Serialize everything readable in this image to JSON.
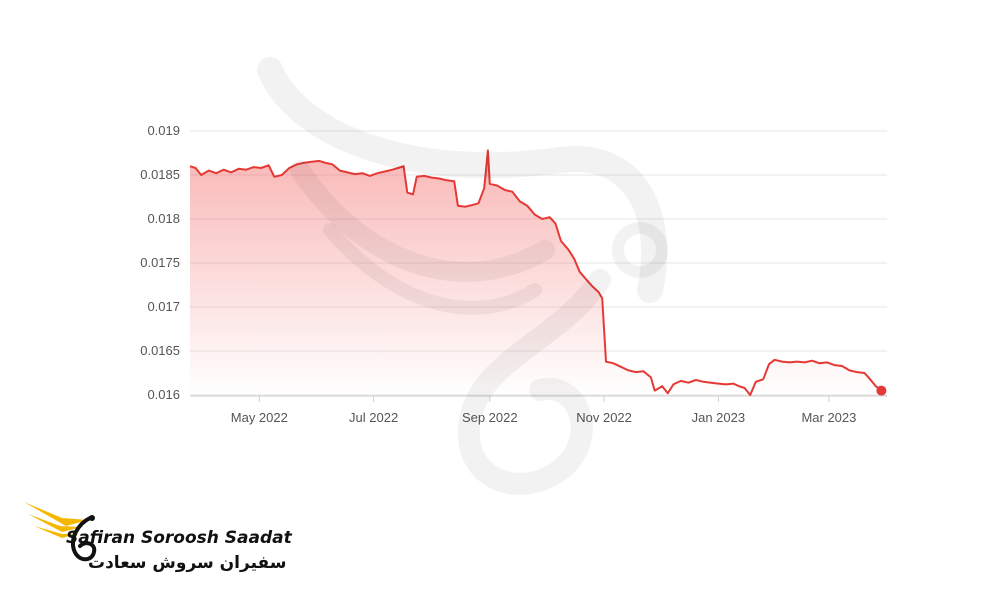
{
  "chart_data": {
    "type": "area",
    "title": "",
    "xlabel": "",
    "ylabel": "",
    "ylim": [
      0.016,
      0.019
    ],
    "yticks": [
      "0.016",
      "0.0165",
      "0.017",
      "0.0175",
      "0.018",
      "0.0185",
      "0.019"
    ],
    "xlim": [
      "2022-03-25",
      "2023-04-01"
    ],
    "xticks": [
      {
        "label": "May 2022",
        "date": "2022-05-01"
      },
      {
        "label": "Jul 2022",
        "date": "2022-07-01"
      },
      {
        "label": "Sep 2022",
        "date": "2022-09-01"
      },
      {
        "label": "Nov 2022",
        "date": "2022-11-01"
      },
      {
        "label": "Jan 2023",
        "date": "2023-01-01"
      },
      {
        "label": "Mar 2023",
        "date": "2023-03-01"
      }
    ],
    "grid": true,
    "line_color": "#e53935",
    "series": [
      {
        "name": "",
        "points": [
          [
            "2022-03-25",
            0.0186
          ],
          [
            "2022-03-28",
            0.01858
          ],
          [
            "2022-03-31",
            0.0185
          ],
          [
            "2022-04-04",
            0.01855
          ],
          [
            "2022-04-08",
            0.01852
          ],
          [
            "2022-04-12",
            0.01856
          ],
          [
            "2022-04-16",
            0.01853
          ],
          [
            "2022-04-20",
            0.01857
          ],
          [
            "2022-04-24",
            0.01856
          ],
          [
            "2022-04-28",
            0.01859
          ],
          [
            "2022-05-02",
            0.01858
          ],
          [
            "2022-05-06",
            0.01861
          ],
          [
            "2022-05-09",
            0.01848
          ],
          [
            "2022-05-13",
            0.0185
          ],
          [
            "2022-05-17",
            0.01858
          ],
          [
            "2022-05-21",
            0.01862
          ],
          [
            "2022-05-25",
            0.01864
          ],
          [
            "2022-05-29",
            0.01865
          ],
          [
            "2022-06-02",
            0.01866
          ],
          [
            "2022-06-05",
            0.01864
          ],
          [
            "2022-06-09",
            0.01862
          ],
          [
            "2022-06-13",
            0.01855
          ],
          [
            "2022-06-17",
            0.01853
          ],
          [
            "2022-06-21",
            0.01851
          ],
          [
            "2022-06-25",
            0.01852
          ],
          [
            "2022-06-29",
            0.01849
          ],
          [
            "2022-07-03",
            0.01852
          ],
          [
            "2022-07-07",
            0.01854
          ],
          [
            "2022-07-11",
            0.01856
          ],
          [
            "2022-07-14",
            0.01858
          ],
          [
            "2022-07-17",
            0.0186
          ],
          [
            "2022-07-19",
            0.0183
          ],
          [
            "2022-07-22",
            0.01828
          ],
          [
            "2022-07-24",
            0.01848
          ],
          [
            "2022-07-28",
            0.01849
          ],
          [
            "2022-08-01",
            0.01847
          ],
          [
            "2022-08-05",
            0.01846
          ],
          [
            "2022-08-09",
            0.01844
          ],
          [
            "2022-08-13",
            0.01843
          ],
          [
            "2022-08-15",
            0.01815
          ],
          [
            "2022-08-19",
            0.01814
          ],
          [
            "2022-08-23",
            0.01816
          ],
          [
            "2022-08-26",
            0.01818
          ],
          [
            "2022-08-29",
            0.01835
          ],
          [
            "2022-08-31",
            0.01878
          ],
          [
            "2022-09-01",
            0.0184
          ],
          [
            "2022-09-05",
            0.01838
          ],
          [
            "2022-09-09",
            0.01833
          ],
          [
            "2022-09-13",
            0.01831
          ],
          [
            "2022-09-17",
            0.0182
          ],
          [
            "2022-09-21",
            0.01815
          ],
          [
            "2022-09-25",
            0.01805
          ],
          [
            "2022-09-29",
            0.018
          ],
          [
            "2022-10-03",
            0.01802
          ],
          [
            "2022-10-06",
            0.01795
          ],
          [
            "2022-10-09",
            0.01775
          ],
          [
            "2022-10-13",
            0.01765
          ],
          [
            "2022-10-16",
            0.01755
          ],
          [
            "2022-10-19",
            0.0174
          ],
          [
            "2022-10-23",
            0.0173
          ],
          [
            "2022-10-26",
            0.01723
          ],
          [
            "2022-10-29",
            0.01717
          ],
          [
            "2022-10-31",
            0.0171
          ],
          [
            "2022-11-02",
            0.01638
          ],
          [
            "2022-11-06",
            0.01636
          ],
          [
            "2022-11-10",
            0.01632
          ],
          [
            "2022-11-14",
            0.01628
          ],
          [
            "2022-11-18",
            0.01626
          ],
          [
            "2022-11-22",
            0.01627
          ],
          [
            "2022-11-26",
            0.0162
          ],
          [
            "2022-11-28",
            0.01605
          ],
          [
            "2022-12-02",
            0.0161
          ],
          [
            "2022-12-05",
            0.01602
          ],
          [
            "2022-12-08",
            0.01612
          ],
          [
            "2022-12-12",
            0.01616
          ],
          [
            "2022-12-16",
            0.01614
          ],
          [
            "2022-12-20",
            0.01617
          ],
          [
            "2022-12-24",
            0.01615
          ],
          [
            "2022-12-28",
            0.01614
          ],
          [
            "2023-01-01",
            0.01613
          ],
          [
            "2023-01-05",
            0.01612
          ],
          [
            "2023-01-09",
            0.01613
          ],
          [
            "2023-01-12",
            0.0161
          ],
          [
            "2023-01-15",
            0.01608
          ],
          [
            "2023-01-18",
            0.016
          ],
          [
            "2023-01-21",
            0.01615
          ],
          [
            "2023-01-25",
            0.01618
          ],
          [
            "2023-01-28",
            0.01635
          ],
          [
            "2023-01-31",
            0.0164
          ],
          [
            "2023-02-04",
            0.01638
          ],
          [
            "2023-02-08",
            0.01637
          ],
          [
            "2023-02-12",
            0.01638
          ],
          [
            "2023-02-16",
            0.01637
          ],
          [
            "2023-02-20",
            0.01639
          ],
          [
            "2023-02-24",
            0.01636
          ],
          [
            "2023-02-28",
            0.01637
          ],
          [
            "2023-03-04",
            0.01634
          ],
          [
            "2023-03-08",
            0.01633
          ],
          [
            "2023-03-12",
            0.01628
          ],
          [
            "2023-03-16",
            0.01626
          ],
          [
            "2023-03-20",
            0.01625
          ],
          [
            "2023-03-23",
            0.01618
          ],
          [
            "2023-03-26",
            0.0161
          ],
          [
            "2023-03-29",
            0.01605
          ]
        ]
      }
    ]
  },
  "brand": {
    "name_en": "Safiran Soroosh Saadat",
    "name_fa": "سفیران سروش سعادت",
    "accent_color": "#f5b800"
  }
}
